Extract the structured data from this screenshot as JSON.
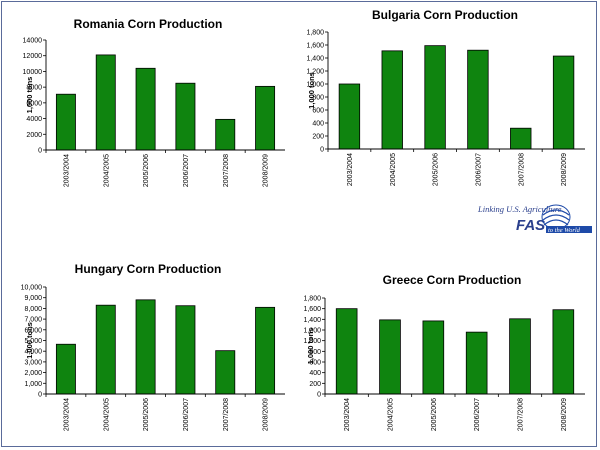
{
  "chart_data": [
    {
      "id": "romania",
      "type": "bar",
      "title": "Romania Corn Production",
      "ylabel": "1,000 tons",
      "xlabel": "",
      "categories": [
        "2003/2004",
        "2004/2005",
        "2005/2006",
        "2006/2007",
        "2007/2008",
        "2008/2009"
      ],
      "values": [
        7100,
        12100,
        10400,
        8500,
        3900,
        8100
      ],
      "ylim": [
        0,
        14000
      ],
      "yticks": [
        0,
        2000,
        4000,
        6000,
        8000,
        10000,
        12000,
        14000
      ],
      "ytick_labels": [
        "0",
        "2000",
        "4000",
        "6000",
        "8000",
        "10000",
        "12000",
        "14000"
      ],
      "bar_color": "#0f840f",
      "grid": false
    },
    {
      "id": "bulgaria",
      "type": "bar",
      "title": "Bulgaria Corn Production",
      "ylabel": "1,000 tons",
      "xlabel": "",
      "categories": [
        "2003/2004",
        "2004/2005",
        "2005/2006",
        "2006/2007",
        "2007/2008",
        "2008/2009"
      ],
      "values": [
        1000,
        1510,
        1590,
        1520,
        320,
        1430
      ],
      "ylim": [
        0,
        1800
      ],
      "yticks": [
        0,
        200,
        400,
        600,
        800,
        1000,
        1200,
        1400,
        1600,
        1800
      ],
      "ytick_labels": [
        "0",
        "200",
        "400",
        "600",
        "800",
        "1,000",
        "1,200",
        "1,400",
        "1,600",
        "1,800"
      ],
      "bar_color": "#0f840f",
      "grid": false
    },
    {
      "id": "hungary",
      "type": "bar",
      "title": "Hungary Corn Production",
      "ylabel": "1,000 tons",
      "xlabel": "",
      "categories": [
        "2003/2004",
        "2004/2005",
        "2005/2006",
        "2006/2007",
        "2007/2008",
        "2008/2009"
      ],
      "values": [
        4650,
        8300,
        8800,
        8250,
        4050,
        8100
      ],
      "ylim": [
        0,
        10000
      ],
      "yticks": [
        0,
        1000,
        2000,
        3000,
        4000,
        5000,
        6000,
        7000,
        8000,
        9000,
        10000
      ],
      "ytick_labels": [
        "0",
        "1,000",
        "2,000",
        "3,000",
        "4,000",
        "5,000",
        "6,000",
        "7,000",
        "8,000",
        "9,000",
        "10,000"
      ],
      "bar_color": "#0f840f",
      "grid": false
    },
    {
      "id": "greece",
      "type": "bar",
      "title": "Greece Corn Production",
      "ylabel": "1,000 tons",
      "xlabel": "",
      "categories": [
        "2003/2004",
        "2004/2005",
        "2005/2006",
        "2006/2007",
        "2007/2008",
        "2008/2009"
      ],
      "values": [
        1600,
        1390,
        1370,
        1160,
        1410,
        1580
      ],
      "ylim": [
        0,
        1800
      ],
      "yticks": [
        0,
        200,
        400,
        600,
        800,
        1000,
        1200,
        1400,
        1600,
        1800
      ],
      "ytick_labels": [
        "0",
        "200",
        "400",
        "600",
        "800",
        "1,000",
        "1,200",
        "1,400",
        "1,600",
        "1,800"
      ],
      "bar_color": "#0f840f",
      "grid": false
    }
  ],
  "logo": {
    "line1": "Linking U.S. Agriculture",
    "brand": "FAS",
    "line2": "to the World",
    "colors": {
      "text": "#2a3f8c",
      "accent": "#1e4aa8"
    }
  }
}
